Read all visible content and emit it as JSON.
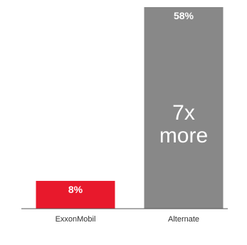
{
  "chart_data": {
    "type": "bar",
    "categories": [
      "ExxonMobil",
      "Alternate"
    ],
    "values": [
      8,
      58
    ],
    "value_labels": [
      "8%",
      "58%"
    ],
    "unit": "%",
    "ylim": [
      0,
      58
    ],
    "colors": [
      "#e8192c",
      "#888888"
    ],
    "grid": false,
    "legend": "none",
    "annotation": {
      "category": "Alternate",
      "lines": [
        "7x",
        "more"
      ]
    }
  }
}
